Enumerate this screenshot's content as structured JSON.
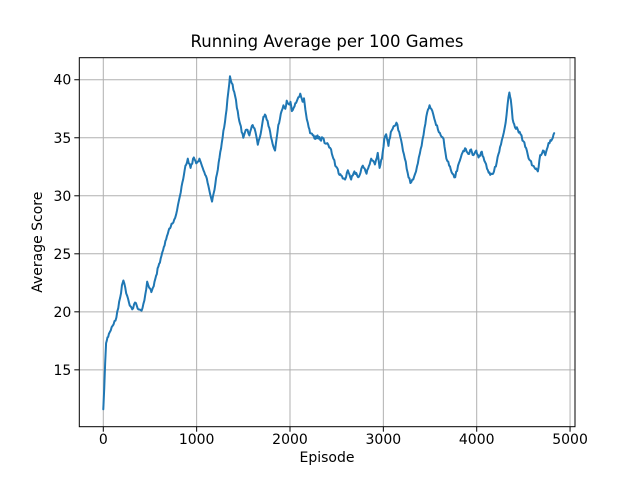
{
  "chart_data": {
    "type": "line",
    "title": "Running Average per 100 Games",
    "xlabel": "Episode",
    "ylabel": "Average Score",
    "x_ticks": [
      0,
      1000,
      2000,
      3000,
      4000,
      5000
    ],
    "y_ticks": [
      15,
      20,
      25,
      30,
      35,
      40
    ],
    "xlim": [
      -257,
      5053
    ],
    "ylim": [
      10.1,
      41.9
    ],
    "grid": true,
    "legend": false,
    "line_color": "#1f77b4",
    "grid_color": "#b0b0b0",
    "spine_color": "#000000",
    "noise_amplitude": 0.15,
    "series": [
      {
        "name": "running_average",
        "points": [
          [
            0,
            11.6
          ],
          [
            10,
            13.4
          ],
          [
            20,
            15.6
          ],
          [
            30,
            17.3
          ],
          [
            45,
            17.8
          ],
          [
            60,
            18.1
          ],
          [
            80,
            18.4
          ],
          [
            100,
            18.8
          ],
          [
            120,
            19.2
          ],
          [
            140,
            19.5
          ],
          [
            160,
            20.3
          ],
          [
            180,
            21.2
          ],
          [
            200,
            22.3
          ],
          [
            215,
            22.7
          ],
          [
            235,
            22.1
          ],
          [
            255,
            21.4
          ],
          [
            275,
            20.8
          ],
          [
            300,
            20.4
          ],
          [
            320,
            20.3
          ],
          [
            340,
            20.8
          ],
          [
            360,
            20.5
          ],
          [
            385,
            20.2
          ],
          [
            410,
            20.1
          ],
          [
            430,
            20.7
          ],
          [
            450,
            21.5
          ],
          [
            470,
            22.6
          ],
          [
            490,
            22.1
          ],
          [
            515,
            21.7
          ],
          [
            540,
            22.2
          ],
          [
            565,
            23.1
          ],
          [
            590,
            23.9
          ],
          [
            615,
            24.6
          ],
          [
            640,
            25.3
          ],
          [
            665,
            26.1
          ],
          [
            690,
            26.7
          ],
          [
            715,
            27.2
          ],
          [
            740,
            27.6
          ],
          [
            770,
            28.1
          ],
          [
            800,
            29.2
          ],
          [
            830,
            30.3
          ],
          [
            855,
            31.4
          ],
          [
            880,
            32.6
          ],
          [
            905,
            33.2
          ],
          [
            935,
            32.4
          ],
          [
            970,
            33.3
          ],
          [
            995,
            32.8
          ],
          [
            1030,
            33.2
          ],
          [
            1065,
            32.4
          ],
          [
            1100,
            31.7
          ],
          [
            1135,
            30.5
          ],
          [
            1165,
            29.5
          ],
          [
            1200,
            31.0
          ],
          [
            1245,
            33.3
          ],
          [
            1270,
            34.6
          ],
          [
            1295,
            35.9
          ],
          [
            1320,
            37.4
          ],
          [
            1340,
            39.0
          ],
          [
            1357,
            40.3
          ],
          [
            1385,
            39.6
          ],
          [
            1412,
            38.6
          ],
          [
            1440,
            37.3
          ],
          [
            1465,
            36.2
          ],
          [
            1500,
            35.0
          ],
          [
            1535,
            35.7
          ],
          [
            1565,
            35.2
          ],
          [
            1600,
            36.1
          ],
          [
            1630,
            35.5
          ],
          [
            1655,
            34.4
          ],
          [
            1685,
            35.3
          ],
          [
            1715,
            36.8
          ],
          [
            1740,
            36.9
          ],
          [
            1770,
            36.0
          ],
          [
            1805,
            34.8
          ],
          [
            1840,
            33.9
          ],
          [
            1875,
            36.1
          ],
          [
            1910,
            37.3
          ],
          [
            1930,
            37.8
          ],
          [
            1950,
            37.5
          ],
          [
            1965,
            38.2
          ],
          [
            1985,
            37.9
          ],
          [
            2005,
            38.1
          ],
          [
            2020,
            37.3
          ],
          [
            2040,
            37.6
          ],
          [
            2065,
            38.0
          ],
          [
            2090,
            38.5
          ],
          [
            2110,
            38.8
          ],
          [
            2135,
            38.1
          ],
          [
            2150,
            38.4
          ],
          [
            2165,
            37.4
          ],
          [
            2180,
            36.6
          ],
          [
            2200,
            35.9
          ],
          [
            2215,
            35.4
          ],
          [
            2245,
            35.2
          ],
          [
            2270,
            34.9
          ],
          [
            2295,
            35.2
          ],
          [
            2325,
            34.8
          ],
          [
            2350,
            35.0
          ],
          [
            2380,
            34.5
          ],
          [
            2410,
            34.4
          ],
          [
            2440,
            34.0
          ],
          [
            2465,
            33.2
          ],
          [
            2495,
            32.5
          ],
          [
            2530,
            31.8
          ],
          [
            2565,
            31.5
          ],
          [
            2590,
            31.4
          ],
          [
            2620,
            32.2
          ],
          [
            2655,
            31.4
          ],
          [
            2690,
            32.1
          ],
          [
            2730,
            31.6
          ],
          [
            2780,
            32.6
          ],
          [
            2820,
            31.9
          ],
          [
            2870,
            33.2
          ],
          [
            2910,
            32.7
          ],
          [
            2940,
            33.7
          ],
          [
            2960,
            32.4
          ],
          [
            2985,
            33.2
          ],
          [
            3010,
            34.9
          ],
          [
            3030,
            35.3
          ],
          [
            3055,
            34.3
          ],
          [
            3080,
            35.5
          ],
          [
            3110,
            36.0
          ],
          [
            3140,
            36.3
          ],
          [
            3170,
            35.5
          ],
          [
            3200,
            34.4
          ],
          [
            3230,
            33.2
          ],
          [
            3260,
            32.0
          ],
          [
            3290,
            31.1
          ],
          [
            3320,
            31.4
          ],
          [
            3350,
            32.1
          ],
          [
            3380,
            33.3
          ],
          [
            3410,
            34.3
          ],
          [
            3440,
            35.8
          ],
          [
            3470,
            37.2
          ],
          [
            3495,
            37.8
          ],
          [
            3525,
            37.3
          ],
          [
            3555,
            36.4
          ],
          [
            3585,
            35.7
          ],
          [
            3615,
            35.2
          ],
          [
            3645,
            34.9
          ],
          [
            3675,
            33.2
          ],
          [
            3705,
            32.6
          ],
          [
            3740,
            31.9
          ],
          [
            3770,
            31.6
          ],
          [
            3800,
            32.6
          ],
          [
            3830,
            33.3
          ],
          [
            3875,
            34.1
          ],
          [
            3910,
            33.6
          ],
          [
            3940,
            34.0
          ],
          [
            3965,
            33.5
          ],
          [
            3995,
            33.9
          ],
          [
            4020,
            33.3
          ],
          [
            4055,
            33.8
          ],
          [
            4090,
            32.9
          ],
          [
            4120,
            32.2
          ],
          [
            4145,
            31.8
          ],
          [
            4175,
            31.9
          ],
          [
            4215,
            32.9
          ],
          [
            4250,
            34.2
          ],
          [
            4280,
            35.1
          ],
          [
            4310,
            36.3
          ],
          [
            4330,
            37.8
          ],
          [
            4350,
            38.9
          ],
          [
            4365,
            38.3
          ],
          [
            4385,
            36.6
          ],
          [
            4410,
            35.9
          ],
          [
            4440,
            35.7
          ],
          [
            4470,
            35.3
          ],
          [
            4500,
            34.7
          ],
          [
            4530,
            34.1
          ],
          [
            4565,
            33.1
          ],
          [
            4600,
            32.6
          ],
          [
            4630,
            32.3
          ],
          [
            4655,
            32.1
          ],
          [
            4680,
            33.5
          ],
          [
            4710,
            33.9
          ],
          [
            4735,
            33.5
          ],
          [
            4760,
            34.2
          ],
          [
            4790,
            34.8
          ],
          [
            4815,
            35.0
          ],
          [
            4830,
            35.4
          ]
        ]
      }
    ]
  }
}
